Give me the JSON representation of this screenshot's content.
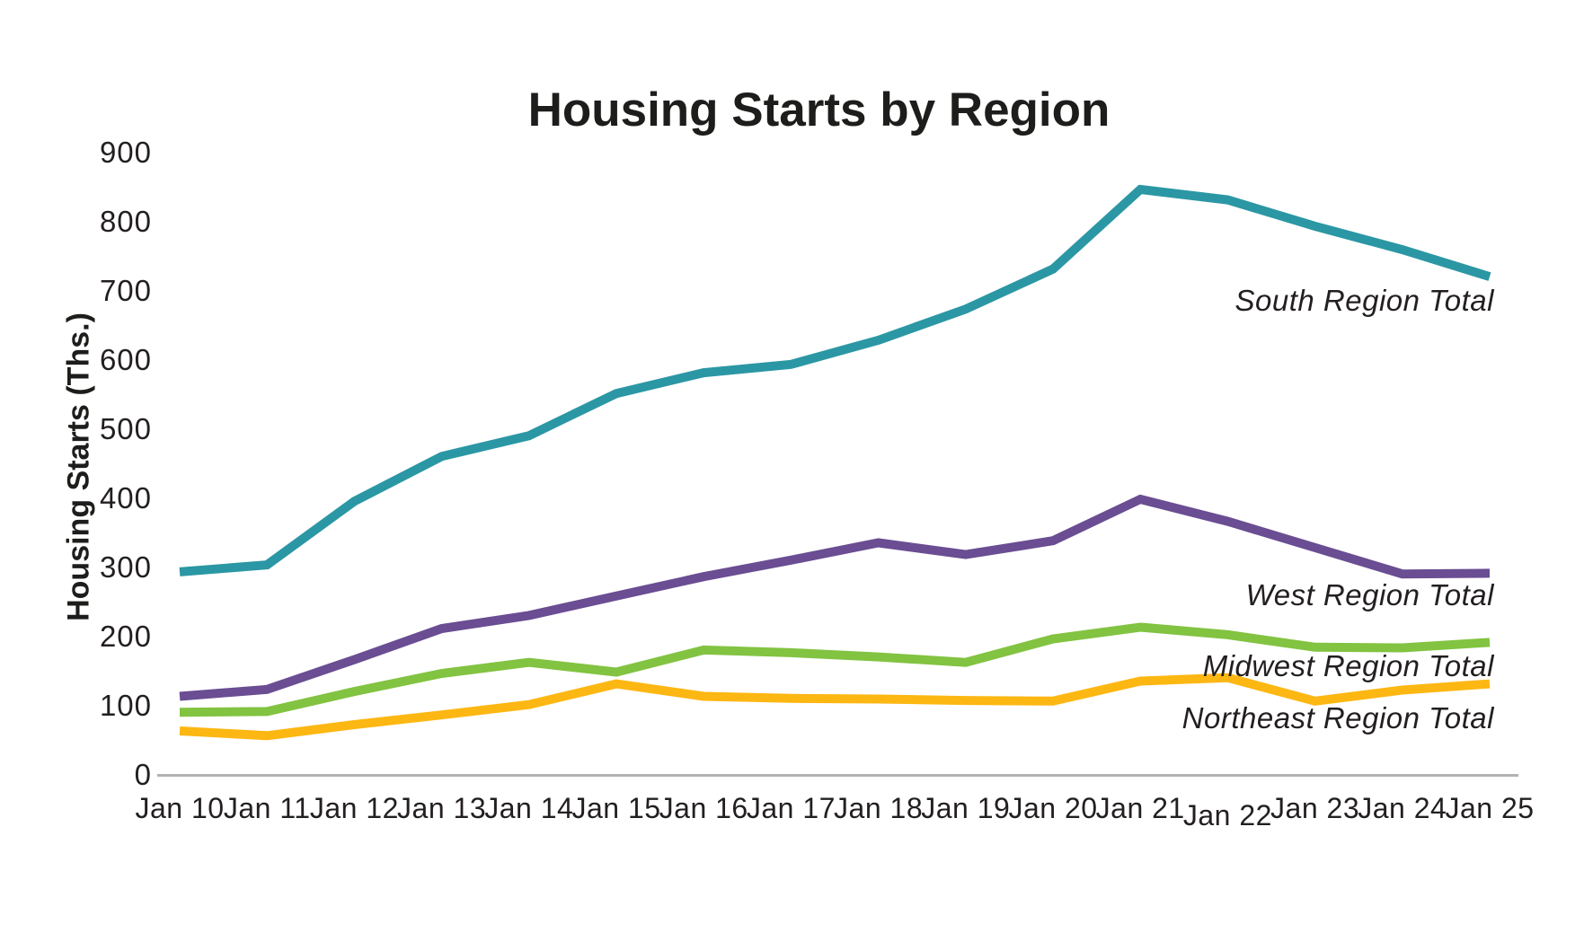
{
  "chart_data": {
    "type": "line",
    "title": "Housing Starts by Region",
    "xlabel": "",
    "ylabel": "Housing Starts (Ths.)",
    "ylim": [
      0,
      900
    ],
    "yticks": [
      0,
      100,
      200,
      300,
      400,
      500,
      600,
      700,
      800,
      900
    ],
    "grid": "off",
    "legend_position": "inline-right-of-lines",
    "categories": [
      "Jan 10",
      "Jan 11",
      "Jan 12",
      "Jan 13",
      "Jan 14",
      "Jan 15",
      "Jan 16",
      "Jan 17",
      "Jan 18",
      "Jan 19",
      "Jan 20",
      "Jan 21",
      "Jan 22",
      "Jan 23",
      "Jan 24",
      "Jan 25"
    ],
    "series": [
      {
        "name": "South Region Total",
        "color": "#2b97a4",
        "values": [
          295,
          305,
          397,
          462,
          492,
          553,
          583,
          595,
          630,
          675,
          733,
          848,
          833,
          795,
          761,
          722
        ]
      },
      {
        "name": "West Region Total",
        "color": "#6a4d92",
        "values": [
          115,
          125,
          168,
          213,
          232,
          260,
          288,
          312,
          337,
          320,
          340,
          400,
          368,
          330,
          292,
          293
        ]
      },
      {
        "name": "Midwest Region Total",
        "color": "#82c341",
        "values": [
          92,
          93,
          122,
          148,
          164,
          150,
          182,
          178,
          172,
          164,
          198,
          215,
          204,
          186,
          185,
          193
        ]
      },
      {
        "name": "Northeast Region Total",
        "color": "#fdb713",
        "values": [
          65,
          58,
          74,
          88,
          103,
          133,
          115,
          112,
          111,
          109,
          108,
          137,
          142,
          108,
          124,
          133
        ]
      }
    ]
  },
  "colors": {
    "title_text": "#1d1d1b",
    "tick_text": "#231f20",
    "axis_line": "#b2b2b2"
  }
}
